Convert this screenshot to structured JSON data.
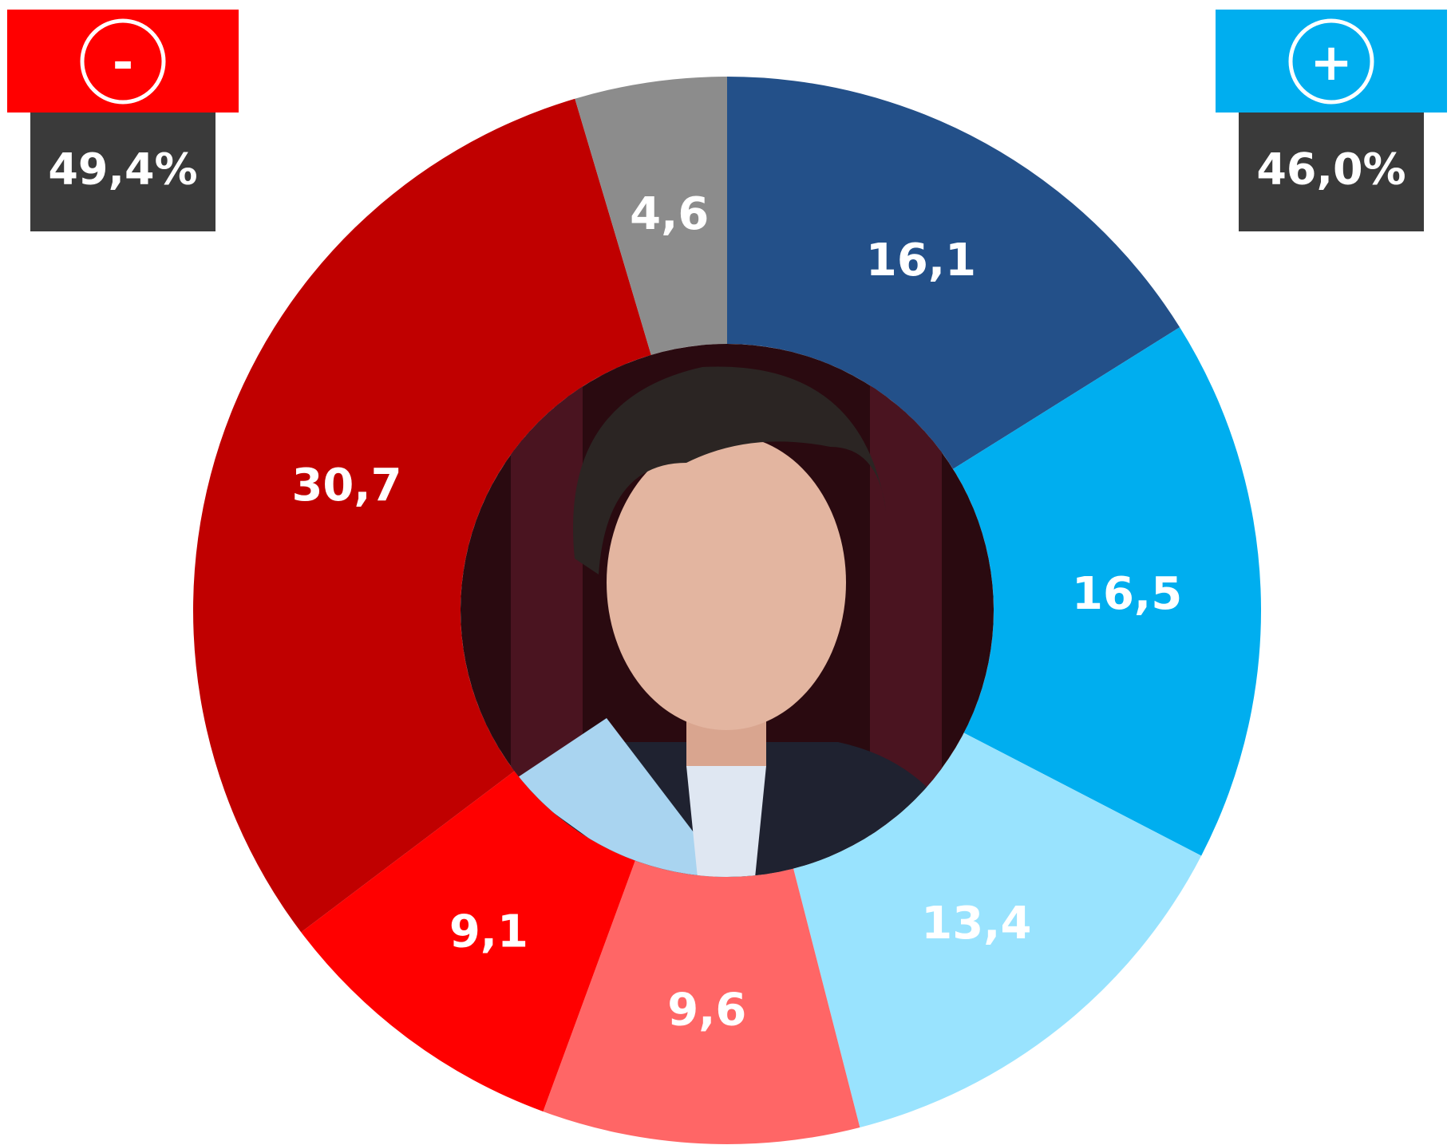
{
  "chart_data": {
    "type": "donut",
    "values": [
      16.1,
      16.5,
      13.4,
      9.6,
      9.1,
      30.7,
      4.6
    ],
    "value_labels": [
      "16,1",
      "16,5",
      "13,4",
      "9,6",
      "9,1",
      "30,7",
      "4,6"
    ],
    "colors": [
      "#235089",
      "#00aeef",
      "#99e3fe",
      "#ff6666",
      "#ff0000",
      "#c00000",
      "#8c8c8c"
    ],
    "annotations": [
      {
        "symbol": "-",
        "text": "49,4%",
        "color": "#ff0000"
      },
      {
        "symbol": "+",
        "text": "46,0%",
        "color": "#00aeef"
      }
    ]
  }
}
